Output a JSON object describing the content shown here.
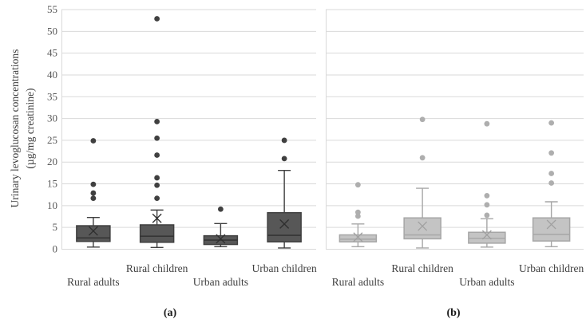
{
  "figure": {
    "y_axis_title_line1": "Urinary levoglucosan concentrations",
    "y_axis_title_line2": "(µg/mg creatinine)",
    "captions": [
      "(a)",
      "(b)"
    ],
    "background_color": "#ffffff",
    "gridline_color": "#d9d9d9",
    "tick_label_color": "#595959",
    "category_label_color": "#404040"
  },
  "chart_data": [
    {
      "type": "boxplot",
      "panel": "a",
      "caption": "(a)",
      "ylim": [
        0,
        55
      ],
      "ytick_step": 5,
      "ytick_labels": [
        "0",
        "5",
        "10",
        "15",
        "20",
        "25",
        "30",
        "35",
        "40",
        "45",
        "50",
        "55"
      ],
      "show_ytick_labels": true,
      "grid": true,
      "legend": "none",
      "categories": [
        "Rural adults",
        "Rural children",
        "Urban adults",
        "Urban children"
      ],
      "colors": {
        "box_fill": "#575757",
        "box_stroke": "#3f3f3f",
        "median": "#353535",
        "whisker": "#3f3f3f",
        "mean_marker": "#2e2e2e",
        "outlier": "#404040"
      },
      "series": [
        {
          "category": "Rural adults",
          "whisker_low": 0.4,
          "q1": 1.7,
          "median": 2.5,
          "q3": 5.3,
          "whisker_high": 7.2,
          "mean": 4.1,
          "outliers": [
            11.6,
            12.8,
            14.8,
            24.8
          ]
        },
        {
          "category": "Rural children",
          "whisker_low": 0.3,
          "q1": 1.5,
          "median": 2.9,
          "q3": 5.5,
          "whisker_high": 8.9,
          "mean": 7.0,
          "outliers": [
            11.6,
            14.6,
            16.3,
            21.5,
            25.4,
            29.2,
            52.8
          ]
        },
        {
          "category": "Urban adults",
          "whisker_low": 0.5,
          "q1": 1.0,
          "median": 2.0,
          "q3": 3.0,
          "whisker_high": 5.8,
          "mean": 2.3,
          "outliers": [
            9.1
          ]
        },
        {
          "category": "Urban children",
          "whisker_low": 0.2,
          "q1": 1.6,
          "median": 3.1,
          "q3": 8.3,
          "whisker_high": 18.0,
          "mean": 5.7,
          "outliers": [
            20.7,
            24.9
          ]
        }
      ]
    },
    {
      "type": "boxplot",
      "panel": "b",
      "caption": "(b)",
      "ylim": [
        0,
        55
      ],
      "ytick_step": 5,
      "show_ytick_labels": false,
      "grid": true,
      "legend": "none",
      "categories": [
        "Rural adults",
        "Rural children",
        "Urban adults",
        "Urban children"
      ],
      "colors": {
        "box_fill": "#c4c4c4",
        "box_stroke": "#a6a6a6",
        "median": "#a9a9a9",
        "whisker": "#a6a6a6",
        "mean_marker": "#a0a0a0",
        "outlier": "#aeaeae"
      },
      "series": [
        {
          "category": "Rural adults",
          "whisker_low": 0.5,
          "q1": 1.6,
          "median": 2.2,
          "q3": 3.2,
          "whisker_high": 5.7,
          "mean": 2.7,
          "outliers": [
            7.5,
            8.4,
            14.7
          ]
        },
        {
          "category": "Rural children",
          "whisker_low": 0.2,
          "q1": 2.3,
          "median": 3.2,
          "q3": 7.1,
          "whisker_high": 13.9,
          "mean": 5.2,
          "outliers": [
            20.9,
            29.7
          ]
        },
        {
          "category": "Urban adults",
          "whisker_low": 0.4,
          "q1": 1.3,
          "median": 2.4,
          "q3": 3.8,
          "whisker_high": 6.9,
          "mean": 3.2,
          "outliers": [
            7.7,
            10.1,
            12.2,
            28.7
          ]
        },
        {
          "category": "Urban children",
          "whisker_low": 0.5,
          "q1": 1.8,
          "median": 3.3,
          "q3": 7.1,
          "whisker_high": 10.8,
          "mean": 5.6,
          "outliers": [
            15.1,
            17.3,
            22.0,
            28.9
          ]
        }
      ]
    }
  ]
}
